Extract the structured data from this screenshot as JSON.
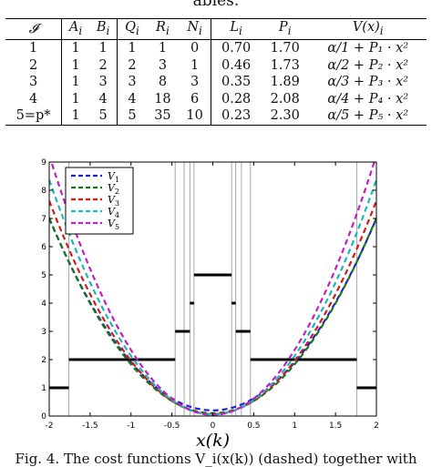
{
  "caption_top": "ables.",
  "table": {
    "headers": [
      "𝓘",
      "A",
      "B",
      "Q",
      "R",
      "N",
      "L",
      "P",
      "V(x)"
    ],
    "header_subs": [
      "",
      "i",
      "i",
      "i",
      "i",
      "i",
      "i",
      "i",
      "i"
    ],
    "rows": [
      [
        "1",
        "1",
        "1",
        "1",
        "1",
        "0",
        "0.70",
        "1.70",
        "α/1 + P₁ · x²"
      ],
      [
        "2",
        "1",
        "2",
        "2",
        "3",
        "1",
        "0.46",
        "1.73",
        "α/2 + P₂ · x²"
      ],
      [
        "3",
        "1",
        "3",
        "3",
        "8",
        "3",
        "0.35",
        "1.89",
        "α/3 + P₃ · x²"
      ],
      [
        "4",
        "1",
        "4",
        "4",
        "18",
        "6",
        "0.28",
        "2.08",
        "α/4 + P₄ · x²"
      ],
      [
        "5=p*",
        "1",
        "5",
        "5",
        "35",
        "10",
        "0.23",
        "2.30",
        "α/5 + P₅ · x²"
      ]
    ]
  },
  "chart_data": {
    "type": "line",
    "xlabel": "x(k)",
    "ylabel": "",
    "xlim": [
      -2,
      2
    ],
    "ylim": [
      0,
      9
    ],
    "xticks": [
      "-2",
      "-1.5",
      "-1",
      "-0.5",
      "0",
      "0.5",
      "1",
      "1.5",
      "2"
    ],
    "yticks": [
      "0",
      "1",
      "2",
      "3",
      "4",
      "5",
      "6",
      "7",
      "8",
      "9"
    ],
    "legend_position": "top-left",
    "series": [
      {
        "name": "V1",
        "label_base": "V",
        "label_sub": "1",
        "P": 1.7,
        "c": 0.2,
        "color": "#1f1fd6"
      },
      {
        "name": "V2",
        "label_base": "V",
        "label_sub": "2",
        "P": 1.73,
        "c": 0.1,
        "color": "#157a15"
      },
      {
        "name": "V3",
        "label_base": "V",
        "label_sub": "3",
        "P": 1.89,
        "c": 0.067,
        "color": "#d41a1a"
      },
      {
        "name": "V4",
        "label_base": "V",
        "label_sub": "4",
        "P": 2.08,
        "c": 0.05,
        "color": "#17b9b9"
      },
      {
        "name": "V5",
        "label_base": "V",
        "label_sub": "5",
        "P": 2.3,
        "c": 0.04,
        "color": "#c51dc5"
      }
    ],
    "steps": [
      {
        "x0": -2,
        "x1": -1.76,
        "y": 1
      },
      {
        "x0": -1.76,
        "x1": -0.46,
        "y": 2
      },
      {
        "x0": -0.46,
        "x1": -0.28,
        "y": 3
      },
      {
        "x0": -0.28,
        "x1": -0.23,
        "y": 4
      },
      {
        "x0": -0.23,
        "x1": 0.23,
        "y": 5
      },
      {
        "x0": 0.23,
        "x1": 0.28,
        "y": 4
      },
      {
        "x0": 0.28,
        "x1": 0.46,
        "y": 3
      },
      {
        "x0": 0.46,
        "x1": 1.76,
        "y": 2
      },
      {
        "x0": 1.76,
        "x1": 2,
        "y": 1
      }
    ],
    "vlines": [
      -1.76,
      -0.46,
      -0.35,
      -0.28,
      -0.23,
      0.23,
      0.28,
      0.35,
      0.46,
      1.76
    ]
  },
  "caption_bottom": "Fig. 4. The cost functions V_i(x(k)) (dashed) together with"
}
